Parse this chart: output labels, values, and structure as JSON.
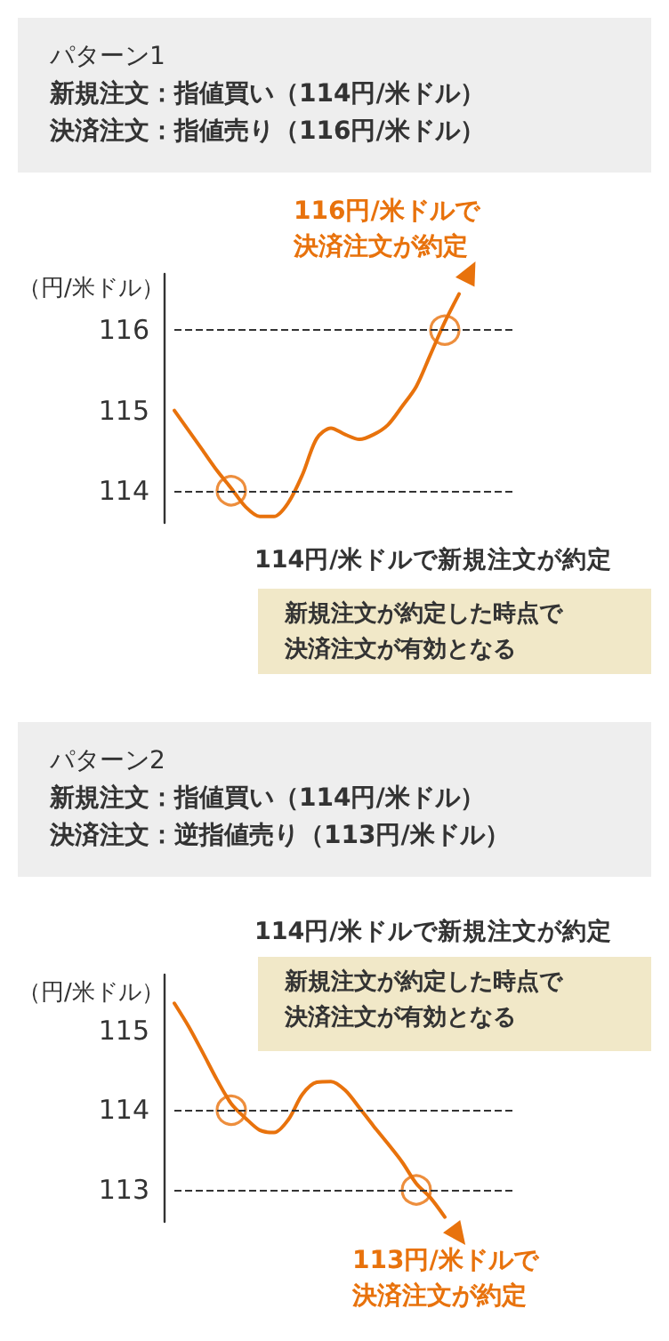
{
  "chart_data": [
    {
      "type": "line",
      "title": "パターン1",
      "subtitle": "新規注文：指値買い（114円/米ドル）決済注文：指値売り（116円/米ドル）",
      "ylabel": "（円/米ドル）",
      "categories": [
        null,
        null,
        null,
        null,
        null,
        null,
        null,
        null,
        null,
        null,
        null,
        null,
        null,
        null,
        null,
        null,
        null,
        null,
        null,
        null,
        null,
        null,
        null,
        null,
        null
      ],
      "series": [
        {
          "color": "#e8720c",
          "values": [
            115.0,
            114.75,
            114.5,
            114.25,
            114.03,
            113.8,
            113.68,
            113.68,
            113.85,
            114.2,
            114.65,
            114.78,
            114.7,
            114.64,
            114.7,
            114.82,
            115.05,
            115.3,
            115.7,
            116.1,
            116.45,
            null,
            null,
            null,
            null
          ]
        },
        {
          "type": "scatter",
          "marker": "circle",
          "color": "#e8720c",
          "values": [
            null,
            null,
            null,
            null,
            114.0,
            null,
            null,
            null,
            null,
            null,
            null,
            null,
            null,
            null,
            null,
            null,
            null,
            null,
            null,
            116.0,
            null,
            null,
            null,
            null,
            null
          ]
        }
      ],
      "ylim": [
        113.6,
        116.7
      ],
      "yticks": [
        114,
        115,
        116
      ],
      "grid": false,
      "marker": "none",
      "tick_labels": "y",
      "ref_lines": [
        {
          "axis": "y",
          "value": 114,
          "line_style": "dashed",
          "color": "#333333"
        },
        {
          "axis": "y",
          "value": 116,
          "line_style": "dashed",
          "color": "#333333"
        }
      ],
      "annotations": [
        "116円/米ドルで決済注文が約定",
        "114円/米ドルで新規注文が約定",
        "新規注文が約定した時点で決済注文が有効となる"
      ]
    },
    {
      "type": "line",
      "title": "パターン2",
      "subtitle": "新規注文：指値買い（114円/米ドル）決済注文：逆指値売り（113円/米ドル）",
      "ylabel": "（円/米ドル）",
      "categories": [
        null,
        null,
        null,
        null,
        null,
        null,
        null,
        null,
        null,
        null,
        null,
        null,
        null,
        null,
        null,
        null,
        null,
        null,
        null,
        null,
        null,
        null,
        null,
        null,
        null
      ],
      "series": [
        {
          "color": "#e8720c",
          "values": [
            115.34,
            115.05,
            114.72,
            114.38,
            114.08,
            113.9,
            113.75,
            113.72,
            113.88,
            114.2,
            114.35,
            114.36,
            114.25,
            114.03,
            113.8,
            113.58,
            113.35,
            113.08,
            112.9,
            112.66,
            null,
            null,
            null,
            null,
            null
          ]
        },
        {
          "type": "scatter",
          "marker": "circle",
          "color": "#e8720c",
          "values": [
            null,
            null,
            null,
            null,
            114.0,
            null,
            null,
            null,
            null,
            null,
            null,
            null,
            null,
            null,
            null,
            null,
            null,
            113.0,
            null,
            null,
            null,
            null,
            null,
            null,
            null
          ]
        }
      ],
      "ylim": [
        112.6,
        115.7
      ],
      "yticks": [
        113,
        114,
        115
      ],
      "grid": false,
      "marker": "none",
      "tick_labels": "y",
      "ref_lines": [
        {
          "axis": "y",
          "value": 114,
          "line_style": "dashed",
          "color": "#333333"
        },
        {
          "axis": "y",
          "value": 113,
          "line_style": "dashed",
          "color": "#333333"
        }
      ],
      "annotations": [
        "113円/米ドルで決済注文が約定",
        "114円/米ドルで新規注文が約定",
        "新規注文が約定した時点で決済注文が有効となる"
      ]
    }
  ]
}
